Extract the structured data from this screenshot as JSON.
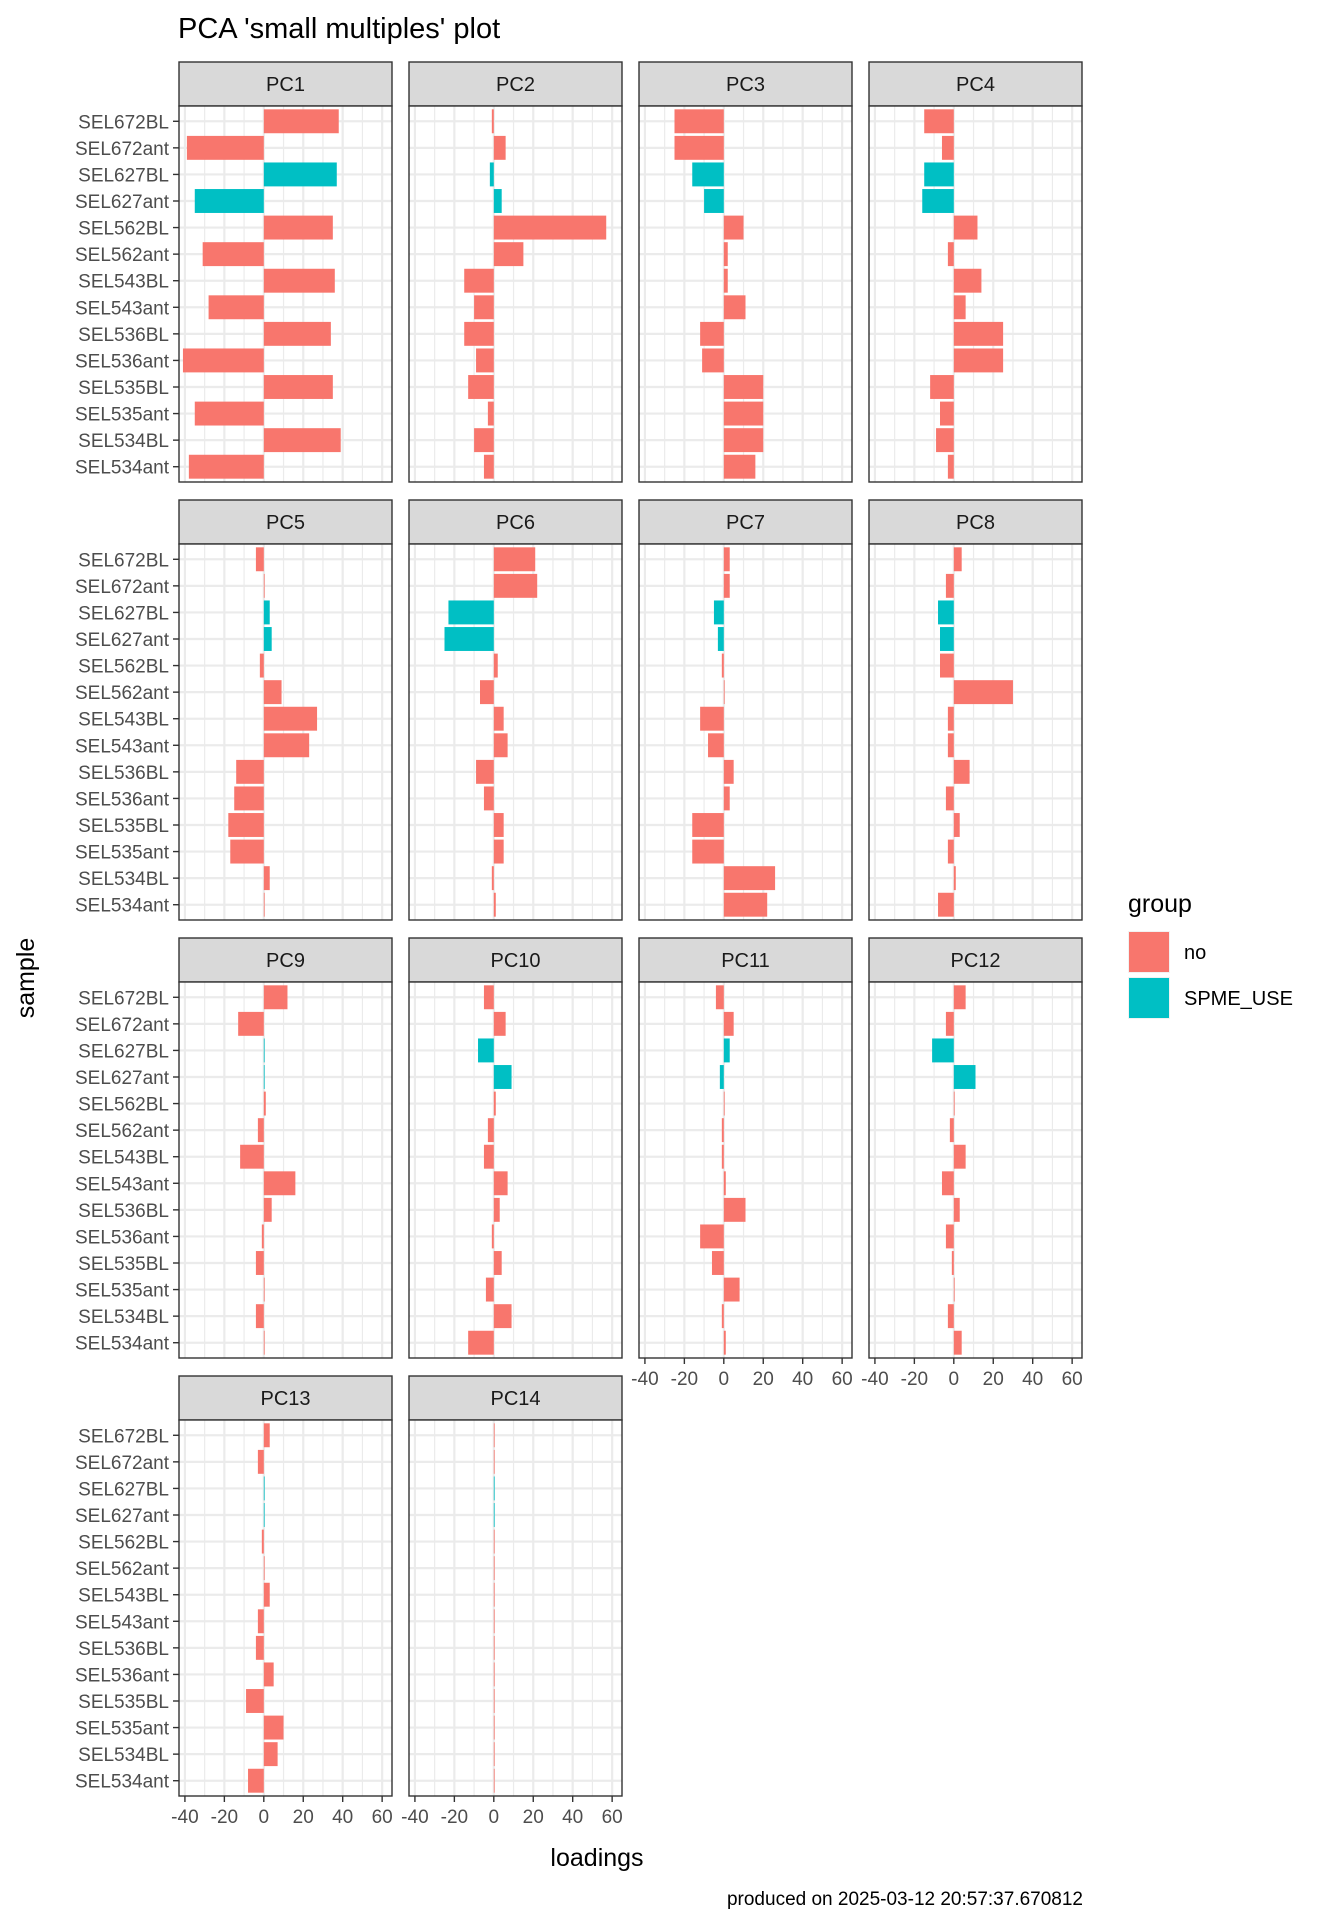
{
  "chart_data": {
    "type": "bar",
    "title": "PCA 'small multiples' plot",
    "xlabel": "loadings",
    "ylabel": "sample",
    "caption": "produced on 2025-03-12 20:57:37.670812",
    "xlim": [
      -43,
      65
    ],
    "xticks": [
      -40,
      -20,
      0,
      20,
      40,
      60
    ],
    "xtick_labels": [
      "-40",
      "-20",
      "0",
      "20",
      "40",
      "60"
    ],
    "grid": true,
    "legend": {
      "title": "group",
      "position": "right",
      "entries": [
        {
          "label": "no",
          "color": "#F8766D"
        },
        {
          "label": "SPME_USE",
          "color": "#00BFC4"
        }
      ]
    },
    "samples": [
      "SEL672BL",
      "SEL672ant",
      "SEL627BL",
      "SEL627ant",
      "SEL562BL",
      "SEL562ant",
      "SEL543BL",
      "SEL543ant",
      "SEL536BL",
      "SEL536ant",
      "SEL535BL",
      "SEL535ant",
      "SEL534BL",
      "SEL534ant"
    ],
    "groups": [
      "no",
      "no",
      "SPME_USE",
      "SPME_USE",
      "no",
      "no",
      "no",
      "no",
      "no",
      "no",
      "no",
      "no",
      "no",
      "no"
    ],
    "panels": [
      {
        "label": "PC1",
        "values": [
          38,
          -39,
          37,
          -35,
          35,
          -31,
          36,
          -28,
          34,
          -41,
          35,
          -35,
          39,
          -38
        ]
      },
      {
        "label": "PC2",
        "values": [
          -1,
          6,
          -2,
          4,
          57,
          15,
          -15,
          -10,
          -15,
          -9,
          -13,
          -3,
          -10,
          -5
        ]
      },
      {
        "label": "PC3",
        "values": [
          -25,
          -25,
          -16,
          -10,
          10,
          2,
          2,
          11,
          -12,
          -11,
          20,
          20,
          20,
          16
        ]
      },
      {
        "label": "PC4",
        "values": [
          -15,
          -6,
          -15,
          -16,
          12,
          -3,
          14,
          6,
          25,
          25,
          -12,
          -7,
          -9,
          -3
        ]
      },
      {
        "label": "PC5",
        "values": [
          -4,
          0,
          3,
          4,
          -2,
          9,
          27,
          23,
          -14,
          -15,
          -18,
          -17,
          3,
          0
        ]
      },
      {
        "label": "PC6",
        "values": [
          21,
          22,
          -23,
          -25,
          2,
          -7,
          5,
          7,
          -9,
          -5,
          5,
          5,
          -1,
          1
        ]
      },
      {
        "label": "PC7",
        "values": [
          3,
          3,
          -5,
          -3,
          -1,
          0,
          -12,
          -8,
          5,
          3,
          -16,
          -16,
          26,
          22
        ]
      },
      {
        "label": "PC8",
        "values": [
          4,
          -4,
          -8,
          -7,
          -7,
          30,
          -3,
          -3,
          8,
          -4,
          3,
          -3,
          1,
          -8
        ]
      },
      {
        "label": "PC9",
        "values": [
          12,
          -13,
          0,
          0,
          1,
          -3,
          -12,
          16,
          4,
          -1,
          -4,
          0,
          -4,
          0
        ]
      },
      {
        "label": "PC10",
        "values": [
          -5,
          6,
          -8,
          9,
          1,
          -3,
          -5,
          7,
          3,
          -1,
          4,
          -4,
          9,
          -13
        ]
      },
      {
        "label": "PC11",
        "values": [
          -4,
          5,
          3,
          -2,
          0,
          -1,
          -1,
          1,
          11,
          -12,
          -6,
          8,
          -1,
          1
        ]
      },
      {
        "label": "PC12",
        "values": [
          6,
          -4,
          -11,
          11,
          0,
          -2,
          6,
          -6,
          3,
          -4,
          -1,
          0,
          -3,
          4
        ]
      },
      {
        "label": "PC13",
        "values": [
          3,
          -3,
          0,
          0,
          -1,
          0,
          3,
          -3,
          -4,
          5,
          -9,
          10,
          7,
          -8
        ]
      },
      {
        "label": "PC14",
        "values": [
          0,
          0,
          0,
          0,
          0,
          0,
          0,
          0,
          0,
          0,
          0,
          0,
          0,
          0
        ]
      }
    ]
  }
}
